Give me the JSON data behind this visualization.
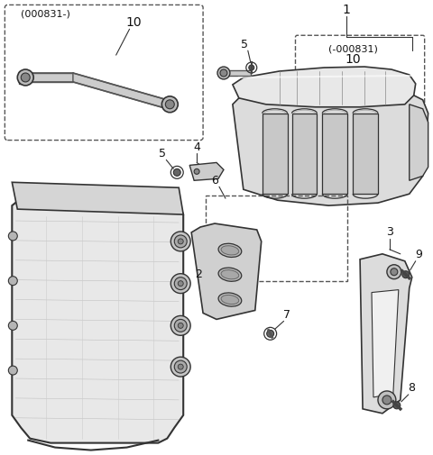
{
  "bg_color": "#ffffff",
  "line_color": "#333333",
  "dashed_box_color": "#555555",
  "label_color": "#111111",
  "fig_width": 4.8,
  "fig_height": 5.05,
  "dpi": 100,
  "labels": {
    "top_left_box_label": "(000831-)",
    "top_left_item": "10",
    "top_right_label1": "1",
    "top_right_sub": "(-000831)",
    "top_right_item": "10",
    "item5_left": "5",
    "item4": "4",
    "item5_right": "5",
    "item6": "6",
    "item2": "2",
    "item7": "7",
    "item3": "3",
    "item9": "9",
    "item8": "8"
  }
}
